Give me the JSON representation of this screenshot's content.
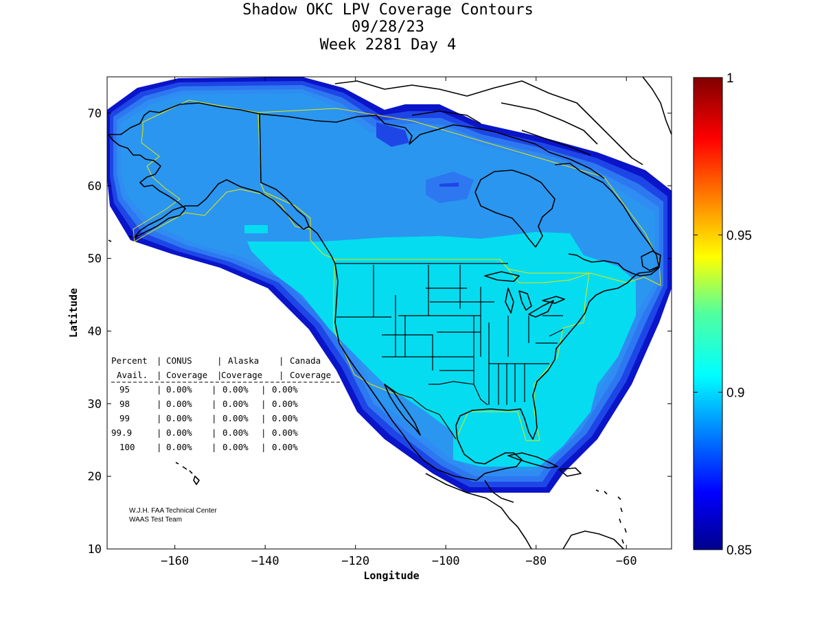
{
  "title": {
    "line1": "Shadow OKC LPV Coverage Contours",
    "line2": "09/28/23",
    "line3": "Week 2281 Day 4"
  },
  "axes": {
    "xlabel": "Longitude",
    "ylabel": "Latitude",
    "x_ticks": [
      "-160",
      "-140",
      "-120",
      "-100",
      "-80",
      "-60"
    ],
    "y_ticks": [
      "10",
      "20",
      "30",
      "40",
      "50",
      "60",
      "70"
    ],
    "x_range": [
      -175,
      -50
    ],
    "y_range": [
      10,
      75
    ]
  },
  "colorbar": {
    "ticks": [
      "1",
      "0.95",
      "0.9",
      "0.85"
    ],
    "range": [
      0.85,
      1.0
    ],
    "colormap": "jet"
  },
  "coverage_table": {
    "header1": [
      "Percent",
      "CONUS",
      "Alaska",
      "Canada"
    ],
    "header2": [
      "Avail.",
      "Coverage",
      "Coverage",
      "Coverage"
    ],
    "rows": [
      {
        "percent": "95",
        "conus": "0.00%",
        "alaska": "0.00%",
        "canada": "0.00%"
      },
      {
        "percent": "98",
        "conus": "0.00%",
        "alaska": "0.00%",
        "canada": "0.00%"
      },
      {
        "percent": "99",
        "conus": "0.00%",
        "alaska": "0.00%",
        "canada": "0.00%"
      },
      {
        "percent": "99.9",
        "conus": "0.00%",
        "alaska": "0.00%",
        "canada": "0.00%"
      },
      {
        "percent": "100",
        "conus": "0.00%",
        "alaska": "0.00%",
        "canada": "0.00%"
      }
    ]
  },
  "credit": {
    "line1": "W.J.H. FAA Technical Center",
    "line2": "WAAS Test Team"
  },
  "colors": {
    "outer_band": "#0a14c8",
    "band2": "#1e46e6",
    "band3": "#2d78f0",
    "band4": "#2f8cf2",
    "inner_north": "#2b96ef",
    "inner_south": "#05dcf0",
    "region_outline": "#e8e800"
  }
}
